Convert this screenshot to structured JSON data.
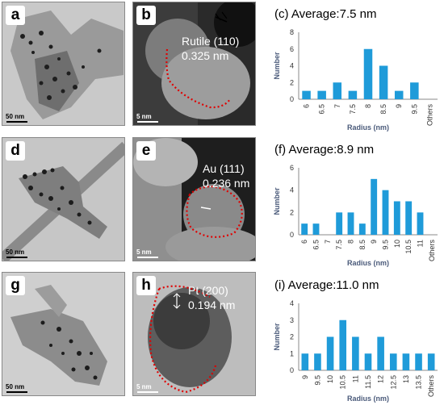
{
  "rows": [
    {
      "low": {
        "label": "a",
        "scale": "50 nm"
      },
      "high": {
        "label": "b",
        "scale": "5 nm",
        "phase": "Rutile (110)",
        "spacing": "0.325 nm"
      },
      "hist": {
        "title": "(c) Average:7.5 nm"
      }
    },
    {
      "low": {
        "label": "d",
        "scale": "50 nm"
      },
      "high": {
        "label": "e",
        "scale": "5 nm",
        "phase": "Au (111)",
        "spacing": "0.236 nm"
      },
      "hist": {
        "title": "(f)  Average:8.9 nm"
      }
    },
    {
      "low": {
        "label": "g",
        "scale": "50 nm"
      },
      "high": {
        "label": "h",
        "scale": "5 nm",
        "phase": "Pt (200)",
        "spacing": "0.194 nm"
      },
      "hist": {
        "title": "(i)  Average:11.0 nm"
      }
    }
  ],
  "chart_data": [
    {
      "type": "bar",
      "title": "(c) Average:7.5 nm",
      "xlabel": "Radius (nm)",
      "ylabel": "Number",
      "categories": [
        "6",
        "6.5",
        "7",
        "7.5",
        "8",
        "8.5",
        "9",
        "9.5",
        "Others"
      ],
      "values": [
        1,
        1,
        2,
        1,
        6,
        4,
        1,
        2,
        0
      ],
      "ylim": [
        0,
        8
      ],
      "yticks": [
        0,
        2,
        4,
        6,
        8
      ],
      "bar_color": "#1f9bd9"
    },
    {
      "type": "bar",
      "title": "(f)  Average:8.9 nm",
      "xlabel": "Radius (nm)",
      "ylabel": "Number",
      "categories": [
        "6",
        "6.5",
        "7",
        "7.5",
        "8",
        "8.5",
        "9",
        "9.5",
        "10",
        "10.5",
        "11",
        "Others"
      ],
      "values": [
        1,
        1,
        0,
        2,
        2,
        1,
        5,
        4,
        3,
        3,
        2,
        0
      ],
      "ylim": [
        0,
        6
      ],
      "yticks": [
        0,
        2,
        4,
        6
      ],
      "bar_color": "#1f9bd9"
    },
    {
      "type": "bar",
      "title": "(i)  Average:11.0 nm",
      "xlabel": "Radius (nm)",
      "ylabel": "Number",
      "categories": [
        "9",
        "9.5",
        "10",
        "10.5",
        "11",
        "11.5",
        "12",
        "12.5",
        "13",
        "13.5",
        "Others"
      ],
      "values": [
        1,
        1,
        2,
        3,
        2,
        1,
        2,
        1,
        1,
        1,
        1
      ],
      "ylim": [
        0,
        4
      ],
      "yticks": [
        0,
        1,
        2,
        3,
        4
      ],
      "bar_color": "#1f9bd9"
    }
  ]
}
